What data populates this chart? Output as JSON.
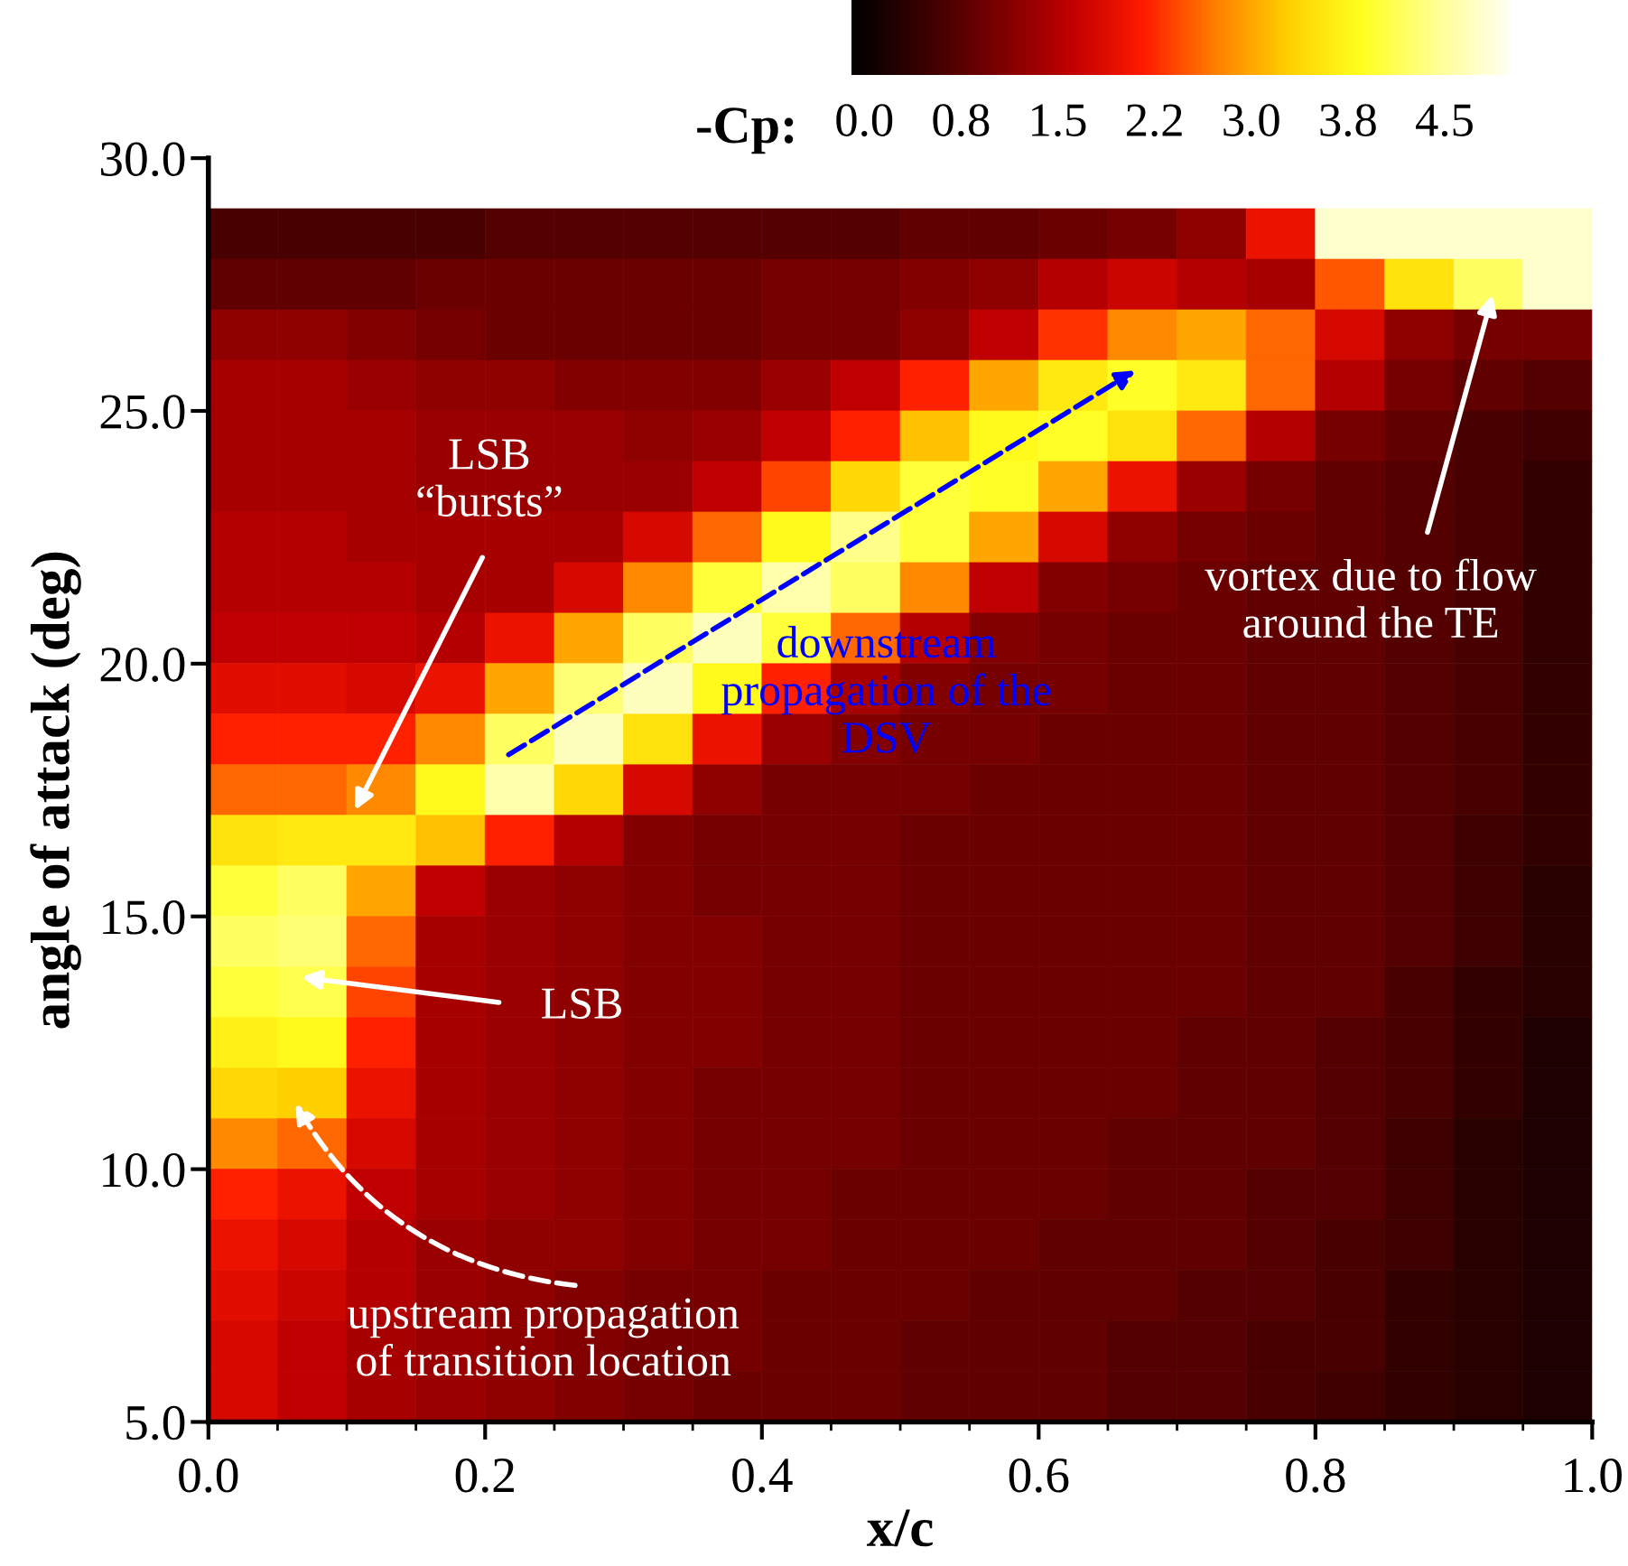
{
  "chart_data": {
    "type": "heatmap",
    "xlabel": "x/c",
    "ylabel": "angle of attack (deg)",
    "clabel": "-Cp:",
    "x": [
      0.025,
      0.075,
      0.125,
      0.175,
      0.225,
      0.275,
      0.325,
      0.375,
      0.425,
      0.475,
      0.525,
      0.575,
      0.625,
      0.675,
      0.725,
      0.775,
      0.825,
      0.875,
      0.925,
      0.975
    ],
    "y": [
      28.5,
      27.5,
      26.5,
      25.5,
      24.5,
      23.5,
      22.5,
      21.5,
      20.5,
      19.5,
      18.5,
      17.5,
      16.5,
      15.5,
      14.5,
      13.5,
      12.5,
      11.5,
      10.5,
      9.5,
      8.5,
      7.5,
      6.5,
      5.5
    ],
    "cells": [
      [
        0.6,
        0.6,
        0.6,
        0.6,
        0.7,
        0.7,
        0.7,
        0.7,
        0.7,
        0.7,
        0.8,
        0.8,
        0.9,
        1.0,
        1.2,
        2.0,
        4.8,
        4.8,
        4.8,
        4.8
      ],
      [
        0.8,
        0.8,
        0.8,
        0.9,
        0.9,
        0.9,
        0.9,
        0.9,
        1.0,
        1.0,
        1.1,
        1.2,
        1.5,
        1.7,
        1.5,
        1.4,
        2.5,
        3.5,
        4.2,
        4.8
      ],
      [
        1.2,
        1.2,
        1.1,
        1.0,
        0.9,
        0.9,
        0.9,
        0.9,
        1.0,
        1.0,
        1.2,
        1.6,
        2.3,
        2.8,
        3.0,
        2.6,
        1.8,
        1.2,
        1.0,
        1.0
      ],
      [
        1.4,
        1.4,
        1.3,
        1.2,
        1.2,
        1.1,
        1.1,
        1.1,
        1.3,
        1.6,
        2.2,
        3.0,
        3.6,
        3.9,
        3.6,
        2.6,
        1.5,
        1.0,
        0.8,
        0.7
      ],
      [
        1.4,
        1.4,
        1.4,
        1.3,
        1.3,
        1.3,
        1.2,
        1.3,
        1.6,
        2.2,
        3.2,
        3.8,
        3.9,
        3.5,
        2.6,
        1.5,
        1.0,
        0.8,
        0.6,
        0.5
      ],
      [
        1.4,
        1.4,
        1.4,
        1.3,
        1.3,
        1.3,
        1.3,
        1.6,
        2.4,
        3.4,
        4.0,
        3.9,
        3.0,
        2.0,
        1.3,
        1.0,
        0.8,
        0.7,
        0.6,
        0.4
      ],
      [
        1.5,
        1.5,
        1.4,
        1.4,
        1.4,
        1.4,
        1.8,
        2.6,
        3.8,
        4.4,
        4.0,
        3.0,
        1.8,
        1.2,
        1.0,
        0.9,
        0.8,
        0.7,
        0.6,
        0.4
      ],
      [
        1.5,
        1.5,
        1.5,
        1.4,
        1.4,
        1.8,
        2.8,
        4.0,
        4.6,
        4.2,
        2.8,
        1.6,
        1.1,
        1.0,
        0.9,
        0.8,
        0.8,
        0.7,
        0.6,
        0.4
      ],
      [
        1.6,
        1.6,
        1.6,
        1.5,
        2.0,
        3.0,
        4.2,
        4.7,
        4.0,
        2.6,
        1.5,
        1.1,
        1.0,
        0.9,
        0.9,
        0.8,
        0.8,
        0.7,
        0.6,
        0.4
      ],
      [
        1.9,
        1.9,
        1.8,
        2.0,
        3.0,
        4.3,
        4.7,
        3.8,
        2.2,
        1.4,
        1.1,
        1.0,
        1.0,
        0.9,
        0.9,
        0.8,
        0.8,
        0.7,
        0.6,
        0.4
      ],
      [
        2.2,
        2.2,
        2.2,
        2.8,
        4.2,
        4.7,
        3.5,
        2.0,
        1.3,
        1.1,
        1.0,
        1.0,
        0.9,
        0.9,
        0.9,
        0.8,
        0.8,
        0.7,
        0.6,
        0.4
      ],
      [
        2.6,
        2.6,
        2.8,
        3.8,
        4.6,
        3.4,
        1.8,
        1.2,
        1.0,
        1.0,
        1.0,
        0.9,
        0.9,
        0.9,
        0.9,
        0.8,
        0.8,
        0.7,
        0.6,
        0.4
      ],
      [
        3.5,
        3.6,
        3.6,
        3.2,
        2.2,
        1.5,
        1.1,
        1.0,
        1.0,
        1.0,
        0.9,
        0.9,
        0.9,
        0.9,
        0.9,
        0.8,
        0.8,
        0.7,
        0.5,
        0.4
      ],
      [
        4.0,
        4.2,
        3.0,
        1.6,
        1.3,
        1.2,
        1.1,
        1.0,
        1.0,
        1.0,
        0.9,
        0.9,
        0.9,
        0.9,
        0.9,
        0.8,
        0.8,
        0.7,
        0.5,
        0.3
      ],
      [
        4.2,
        4.3,
        2.6,
        1.4,
        1.3,
        1.2,
        1.1,
        1.1,
        1.0,
        1.0,
        0.9,
        0.9,
        0.9,
        0.9,
        0.9,
        0.8,
        0.8,
        0.7,
        0.5,
        0.3
      ],
      [
        4.0,
        4.1,
        2.4,
        1.4,
        1.3,
        1.2,
        1.1,
        1.1,
        1.0,
        1.0,
        0.9,
        0.9,
        0.9,
        0.9,
        0.9,
        0.8,
        0.8,
        0.6,
        0.4,
        0.3
      ],
      [
        3.7,
        3.8,
        2.2,
        1.4,
        1.3,
        1.2,
        1.1,
        1.1,
        1.0,
        1.0,
        0.9,
        0.9,
        0.9,
        0.9,
        0.8,
        0.8,
        0.7,
        0.6,
        0.4,
        0.2
      ],
      [
        3.4,
        3.3,
        2.0,
        1.4,
        1.3,
        1.2,
        1.1,
        1.0,
        1.0,
        1.0,
        0.9,
        0.9,
        0.9,
        0.9,
        0.8,
        0.8,
        0.7,
        0.6,
        0.4,
        0.2
      ],
      [
        2.8,
        2.6,
        1.8,
        1.4,
        1.3,
        1.2,
        1.1,
        1.0,
        1.0,
        1.0,
        0.9,
        0.9,
        0.9,
        0.8,
        0.8,
        0.8,
        0.7,
        0.5,
        0.3,
        0.2
      ],
      [
        2.2,
        2.0,
        1.6,
        1.4,
        1.3,
        1.2,
        1.1,
        1.0,
        1.0,
        0.9,
        0.9,
        0.9,
        0.9,
        0.8,
        0.8,
        0.7,
        0.7,
        0.5,
        0.3,
        0.2
      ],
      [
        2.0,
        1.8,
        1.5,
        1.3,
        1.2,
        1.2,
        1.1,
        1.0,
        1.0,
        0.9,
        0.9,
        0.9,
        0.8,
        0.8,
        0.8,
        0.7,
        0.6,
        0.5,
        0.3,
        0.2
      ],
      [
        1.9,
        1.7,
        1.5,
        1.3,
        1.2,
        1.1,
        1.0,
        1.0,
        0.9,
        0.9,
        0.9,
        0.8,
        0.8,
        0.8,
        0.7,
        0.7,
        0.6,
        0.4,
        0.3,
        0.2
      ],
      [
        1.8,
        1.6,
        1.4,
        1.3,
        1.2,
        1.1,
        1.0,
        1.0,
        0.9,
        0.9,
        0.8,
        0.8,
        0.8,
        0.7,
        0.7,
        0.6,
        0.6,
        0.4,
        0.3,
        0.2
      ],
      [
        1.8,
        1.6,
        1.4,
        1.3,
        1.2,
        1.1,
        1.0,
        0.9,
        0.9,
        0.9,
        0.8,
        0.8,
        0.8,
        0.7,
        0.7,
        0.6,
        0.5,
        0.4,
        0.3,
        0.2
      ]
    ],
    "clim": [
      -0.1,
      5.0
    ],
    "cticks": [
      {
        "value": 0.0,
        "label": "0.0"
      },
      {
        "value": 0.75,
        "label": "0.8"
      },
      {
        "value": 1.5,
        "label": "1.5"
      },
      {
        "value": 2.25,
        "label": "2.2"
      },
      {
        "value": 3.0,
        "label": "3.0"
      },
      {
        "value": 3.75,
        "label": "3.8"
      },
      {
        "value": 4.5,
        "label": "4.5"
      }
    ],
    "xlim": [
      0.0,
      1.0
    ],
    "xticks": [
      {
        "value": 0.0,
        "label": "0.0"
      },
      {
        "value": 0.2,
        "label": "0.2"
      },
      {
        "value": 0.4,
        "label": "0.4"
      },
      {
        "value": 0.6,
        "label": "0.6"
      },
      {
        "value": 0.8,
        "label": "0.8"
      },
      {
        "value": 1.0,
        "label": "1.0"
      }
    ],
    "ylim": [
      5.0,
      30.0
    ],
    "yticks": [
      {
        "value": 5,
        "label": "5.0"
      },
      {
        "value": 10,
        "label": "10.0"
      },
      {
        "value": 15,
        "label": "15.0"
      },
      {
        "value": 20,
        "label": "20.0"
      },
      {
        "value": 25,
        "label": "25.0"
      },
      {
        "value": 30,
        "label": "30.0"
      }
    ],
    "grid": false,
    "annotations": [
      "LSB\n“bursts”",
      "LSB",
      "upstream propagation\nof transition location",
      "downstream\npropagation of the\nDSV",
      "vortex due to flow\naround the TE"
    ]
  }
}
